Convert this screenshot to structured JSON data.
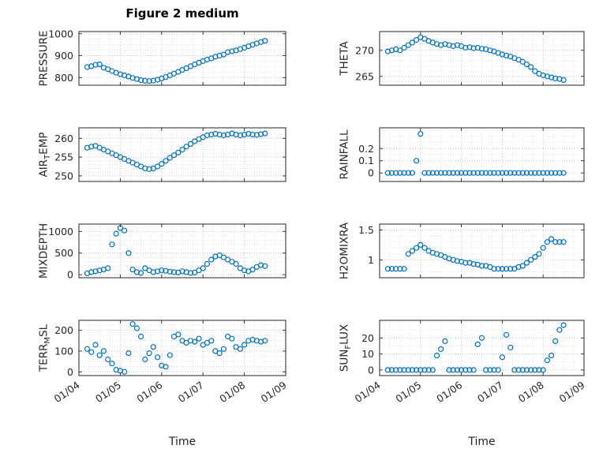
{
  "figure": {
    "title": "Figure 2 medium",
    "xlabel": "Time",
    "marker_color": "#0072BD",
    "axis_color": "#262626",
    "grid_color": "#bfbfbf",
    "minor_grid_color": "#d8d8d8",
    "xlim": [
      4,
      9
    ],
    "xticks": [
      4,
      5,
      6,
      7,
      8,
      9
    ],
    "xtick_labels": [
      "01/04",
      "01/05",
      "01/06",
      "01/07",
      "01/08",
      "01/09"
    ]
  },
  "chart_data": [
    {
      "name": "PRESSURE",
      "type": "scatter",
      "row": 0,
      "col": 0,
      "ylabel_parts": [
        {
          "text": "PRESSURE",
          "sub": false
        }
      ],
      "ylim": [
        765,
        1010
      ],
      "yticks": [
        800,
        900,
        1000
      ],
      "ytick_labels": [
        "800",
        "900",
        "1000"
      ],
      "yminor": 25,
      "x": [
        4.2,
        4.3,
        4.4,
        4.5,
        4.6,
        4.7,
        4.8,
        4.9,
        5.0,
        5.1,
        5.2,
        5.3,
        5.4,
        5.5,
        5.6,
        5.7,
        5.8,
        5.9,
        6.0,
        6.1,
        6.2,
        6.3,
        6.4,
        6.5,
        6.6,
        6.7,
        6.8,
        6.9,
        7.0,
        7.1,
        7.2,
        7.3,
        7.4,
        7.5,
        7.6,
        7.7,
        7.8,
        7.9,
        8.0,
        8.1,
        8.2,
        8.3,
        8.4,
        8.5
      ],
      "y": [
        848,
        852,
        858,
        860,
        845,
        838,
        830,
        822,
        815,
        810,
        805,
        798,
        793,
        788,
        785,
        784,
        786,
        790,
        796,
        802,
        810,
        818,
        826,
        835,
        843,
        852,
        860,
        868,
        875,
        882,
        888,
        895,
        900,
        905,
        916,
        920,
        924,
        930,
        936,
        943,
        950,
        956,
        962,
        968
      ]
    },
    {
      "name": "THETA",
      "type": "scatter",
      "row": 0,
      "col": 1,
      "ylabel_parts": [
        {
          "text": "THETA",
          "sub": false
        }
      ],
      "ylim": [
        263.3,
        273.6
      ],
      "yticks": [
        265,
        270
      ],
      "ytick_labels": [
        "265",
        "270"
      ],
      "yminor": 1,
      "x": [
        4.2,
        4.3,
        4.4,
        4.5,
        4.6,
        4.7,
        4.8,
        4.9,
        5.0,
        5.1,
        5.2,
        5.3,
        5.4,
        5.5,
        5.6,
        5.7,
        5.8,
        5.9,
        6.0,
        6.1,
        6.2,
        6.3,
        6.4,
        6.5,
        6.6,
        6.7,
        6.8,
        6.9,
        7.0,
        7.1,
        7.2,
        7.3,
        7.4,
        7.5,
        7.6,
        7.7,
        7.8,
        7.9,
        8.0,
        8.1,
        8.2,
        8.3,
        8.4,
        8.5
      ],
      "y": [
        269.8,
        270,
        270.2,
        270,
        270.5,
        271,
        271.5,
        272,
        272.5,
        272.2,
        271.8,
        271.5,
        271.2,
        271,
        271.2,
        271,
        270.8,
        271,
        270.8,
        270.5,
        270.6,
        270.4,
        270.5,
        270.3,
        270.2,
        270,
        269.8,
        269.5,
        269.2,
        269,
        268.8,
        268.5,
        268.2,
        267.8,
        267.3,
        266.8,
        266,
        265.5,
        265.2,
        265,
        264.8,
        264.6,
        264.5,
        264.3
      ]
    },
    {
      "name": "AIR_TEMP",
      "type": "scatter",
      "row": 1,
      "col": 0,
      "ylabel_parts": [
        {
          "text": "AIR",
          "sub": false
        },
        {
          "text": "T",
          "sub": true
        },
        {
          "text": "EMP",
          "sub": false
        }
      ],
      "ylim": [
        248.5,
        262.8
      ],
      "yticks": [
        250,
        255,
        260
      ],
      "ytick_labels": [
        "250",
        "255",
        "260"
      ],
      "yminor": 1,
      "x": [
        4.2,
        4.3,
        4.4,
        4.5,
        4.6,
        4.7,
        4.8,
        4.9,
        5.0,
        5.1,
        5.2,
        5.3,
        5.4,
        5.5,
        5.6,
        5.7,
        5.8,
        5.9,
        6.0,
        6.1,
        6.2,
        6.3,
        6.4,
        6.5,
        6.6,
        6.7,
        6.8,
        6.9,
        7.0,
        7.1,
        7.2,
        7.3,
        7.4,
        7.5,
        7.6,
        7.7,
        7.8,
        7.9,
        8.0,
        8.1,
        8.2,
        8.3,
        8.4,
        8.5
      ],
      "y": [
        257.5,
        257.8,
        258,
        257.5,
        257,
        256.5,
        256,
        255.5,
        255,
        254.5,
        254,
        253.5,
        253,
        252.5,
        252,
        251.8,
        252,
        252.5,
        253.2,
        254,
        254.8,
        255.5,
        256.2,
        257,
        257.8,
        258.5,
        259.2,
        259.8,
        260.3,
        260.8,
        261,
        261.2,
        261,
        260.8,
        261,
        261.3,
        261,
        260.8,
        261,
        261.2,
        261,
        260.9,
        261.1,
        261.3
      ]
    },
    {
      "name": "RAINFALL",
      "type": "scatter",
      "row": 1,
      "col": 1,
      "ylabel_parts": [
        {
          "text": "RAINFALL",
          "sub": false
        }
      ],
      "ylim": [
        -0.07,
        0.37
      ],
      "yticks": [
        0,
        0.1,
        0.2
      ],
      "ytick_labels": [
        "0",
        "0.1",
        "0.2"
      ],
      "yminor": 0.05,
      "x": [
        4.2,
        4.3,
        4.4,
        4.5,
        4.6,
        4.7,
        4.8,
        4.9,
        5.0,
        5.1,
        5.2,
        5.3,
        5.4,
        5.5,
        5.6,
        5.7,
        5.8,
        5.9,
        6.0,
        6.1,
        6.2,
        6.3,
        6.4,
        6.5,
        6.6,
        6.7,
        6.8,
        6.9,
        7.0,
        7.1,
        7.2,
        7.3,
        7.4,
        7.5,
        7.6,
        7.7,
        7.8,
        7.9,
        8.0,
        8.1,
        8.2,
        8.3,
        8.4,
        8.5
      ],
      "y": [
        0,
        0,
        0,
        0,
        0,
        0,
        0,
        0.1,
        0.32,
        0,
        0,
        0,
        0,
        0,
        0,
        0,
        0,
        0,
        0,
        0,
        0,
        0,
        0,
        0,
        0,
        0,
        0,
        0,
        0,
        0,
        0,
        0,
        0,
        0,
        0,
        0,
        0,
        0,
        0,
        0,
        0,
        0,
        0,
        0
      ]
    },
    {
      "name": "MIXDEPTH",
      "type": "scatter",
      "row": 2,
      "col": 0,
      "ylabel_parts": [
        {
          "text": "MIXDEPTH",
          "sub": false
        }
      ],
      "ylim": [
        -70,
        1170
      ],
      "yticks": [
        0,
        500,
        1000
      ],
      "ytick_labels": [
        "0",
        "500",
        "1000"
      ],
      "yminor": 100,
      "x": [
        4.2,
        4.3,
        4.4,
        4.5,
        4.6,
        4.7,
        4.8,
        4.9,
        5.0,
        5.1,
        5.2,
        5.3,
        5.4,
        5.5,
        5.6,
        5.7,
        5.8,
        5.9,
        6.0,
        6.1,
        6.2,
        6.3,
        6.4,
        6.5,
        6.6,
        6.7,
        6.8,
        6.9,
        7.0,
        7.1,
        7.2,
        7.3,
        7.4,
        7.5,
        7.6,
        7.7,
        7.8,
        7.9,
        8.0,
        8.1,
        8.2,
        8.3,
        8.4,
        8.5
      ],
      "y": [
        30,
        60,
        80,
        100,
        120,
        150,
        700,
        950,
        1080,
        1020,
        500,
        120,
        60,
        40,
        150,
        100,
        60,
        80,
        100,
        90,
        70,
        60,
        50,
        80,
        60,
        40,
        50,
        100,
        150,
        250,
        350,
        420,
        450,
        400,
        350,
        300,
        250,
        150,
        100,
        80,
        120,
        180,
        220,
        200
      ]
    },
    {
      "name": "H2OMIXRA",
      "type": "scatter",
      "row": 2,
      "col": 1,
      "ylabel_parts": [
        {
          "text": "H2OMIXRA",
          "sub": false
        }
      ],
      "ylim": [
        0.7,
        1.6
      ],
      "yticks": [
        1,
        1.5
      ],
      "ytick_labels": [
        "1",
        "1.5"
      ],
      "yminor": 0.1,
      "x": [
        4.2,
        4.3,
        4.4,
        4.5,
        4.6,
        4.7,
        4.8,
        4.9,
        5.0,
        5.1,
        5.2,
        5.3,
        5.4,
        5.5,
        5.6,
        5.7,
        5.8,
        5.9,
        6.0,
        6.1,
        6.2,
        6.3,
        6.4,
        6.5,
        6.6,
        6.7,
        6.8,
        6.9,
        7.0,
        7.1,
        7.2,
        7.3,
        7.4,
        7.5,
        7.6,
        7.7,
        7.8,
        7.9,
        8.0,
        8.1,
        8.2,
        8.3,
        8.4,
        8.5
      ],
      "y": [
        0.85,
        0.85,
        0.85,
        0.85,
        0.85,
        1.1,
        1.15,
        1.2,
        1.25,
        1.2,
        1.15,
        1.12,
        1.1,
        1.08,
        1.05,
        1.02,
        1.0,
        0.98,
        0.97,
        0.95,
        0.95,
        0.93,
        0.92,
        0.9,
        0.9,
        0.88,
        0.85,
        0.85,
        0.85,
        0.85,
        0.85,
        0.85,
        0.88,
        0.9,
        0.95,
        1.0,
        1.05,
        1.1,
        1.2,
        1.3,
        1.35,
        1.3,
        1.3,
        1.3
      ]
    },
    {
      "name": "TERR_MSL",
      "type": "scatter",
      "row": 3,
      "col": 0,
      "ylabel_parts": [
        {
          "text": "TERR",
          "sub": false
        },
        {
          "text": "M",
          "sub": true
        },
        {
          "text": "SL",
          "sub": false
        }
      ],
      "ylim": [
        -18,
        248
      ],
      "yticks": [
        0,
        100,
        200
      ],
      "ytick_labels": [
        "0",
        "100",
        "200"
      ],
      "yminor": 25,
      "x": [
        4.2,
        4.3,
        4.4,
        4.5,
        4.6,
        4.7,
        4.8,
        4.9,
        5.0,
        5.1,
        5.2,
        5.3,
        5.4,
        5.5,
        5.6,
        5.7,
        5.8,
        5.9,
        6.0,
        6.1,
        6.2,
        6.3,
        6.4,
        6.5,
        6.6,
        6.7,
        6.8,
        6.9,
        7.0,
        7.1,
        7.2,
        7.3,
        7.4,
        7.5,
        7.6,
        7.7,
        7.8,
        7.9,
        8.0,
        8.1,
        8.2,
        8.3,
        8.4,
        8.5
      ],
      "y": [
        110,
        95,
        130,
        80,
        100,
        60,
        40,
        10,
        5,
        0,
        90,
        230,
        210,
        170,
        60,
        90,
        120,
        70,
        30,
        25,
        80,
        170,
        180,
        150,
        140,
        150,
        145,
        160,
        130,
        140,
        150,
        100,
        90,
        110,
        170,
        160,
        120,
        110,
        130,
        150,
        155,
        150,
        145,
        150
      ]
    },
    {
      "name": "SUN_FLUX",
      "type": "scatter",
      "row": 3,
      "col": 1,
      "ylabel_parts": [
        {
          "text": "SUN",
          "sub": false
        },
        {
          "text": "F",
          "sub": true
        },
        {
          "text": "LUX",
          "sub": false
        }
      ],
      "ylim": [
        -3.5,
        31
      ],
      "yticks": [
        0,
        10,
        20
      ],
      "ytick_labels": [
        "0",
        "10",
        "20"
      ],
      "yminor": 5,
      "x": [
        4.2,
        4.3,
        4.4,
        4.5,
        4.6,
        4.7,
        4.8,
        4.9,
        5.0,
        5.1,
        5.2,
        5.3,
        5.4,
        5.5,
        5.6,
        5.7,
        5.8,
        5.9,
        6.0,
        6.1,
        6.2,
        6.3,
        6.4,
        6.5,
        6.6,
        6.7,
        6.8,
        6.9,
        7.0,
        7.1,
        7.2,
        7.3,
        7.4,
        7.5,
        7.6,
        7.7,
        7.8,
        7.9,
        8.0,
        8.1,
        8.2,
        8.3,
        8.4,
        8.5
      ],
      "y": [
        0,
        0,
        0,
        0,
        0,
        0,
        0,
        0,
        0,
        0,
        0,
        0,
        9,
        13,
        18,
        0,
        0,
        0,
        0,
        0,
        0,
        0,
        16,
        20,
        0,
        0,
        0,
        0,
        8,
        22,
        14,
        0,
        0,
        0,
        0,
        0,
        0,
        0,
        0,
        6,
        9,
        18,
        25,
        28
      ]
    }
  ]
}
